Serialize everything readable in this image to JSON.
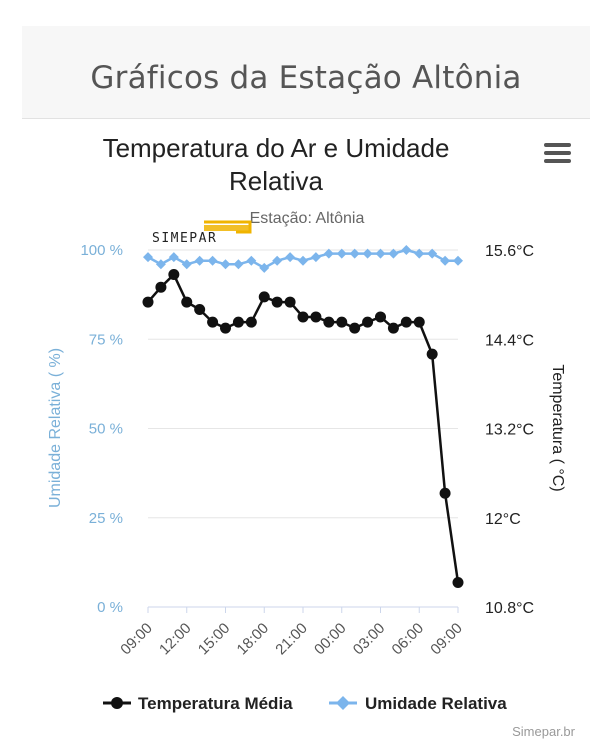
{
  "page": {
    "heading": "Gráficos da Estação Altônia",
    "credit": "Simepar.br"
  },
  "menu": {
    "icon": "hamburger-menu-icon"
  },
  "logo": {
    "text": "SIMEPAR"
  },
  "colors": {
    "temperature": "#111111",
    "humidity": "#7cb5ec",
    "humidity_axis": "#7ab0d8",
    "logo_accent": "#f0b400"
  },
  "chart_data": {
    "type": "line",
    "title": "Temperatura do Ar e Umidade Relativa",
    "title_lines": [
      "Temperatura do Ar e Umidade",
      "Relativa"
    ],
    "subtitle": "Estação: Altônia",
    "x_tick_labels": [
      "09:00",
      "12:00",
      "15:00",
      "18:00",
      "21:00",
      "00:00",
      "03:00",
      "06:00",
      "09:00"
    ],
    "x_range": [
      0,
      24
    ],
    "y_left": {
      "label": "Umidade Relativa ( %)",
      "range": [
        0,
        100
      ],
      "ticks": [
        0,
        25,
        50,
        75,
        100
      ],
      "tick_labels": [
        "0 %",
        "25 %",
        "50 %",
        "75 %",
        "100 %"
      ]
    },
    "y_right": {
      "label": "Temperatura ( °C)",
      "range": [
        10.8,
        15.6
      ],
      "ticks": [
        10.8,
        12,
        13.2,
        14.4,
        15.6
      ],
      "tick_labels": [
        "10.8°C",
        "12°C",
        "13.2°C",
        "14.4°C",
        "15.6°C"
      ]
    },
    "series": [
      {
        "name": "Temperatura Média",
        "axis": "right",
        "x": [
          0,
          1,
          2,
          3,
          4,
          5,
          6,
          7,
          8,
          9,
          10,
          11,
          12,
          13,
          14,
          15,
          16,
          17,
          18,
          19,
          20,
          21,
          22,
          23,
          24
        ],
        "values": [
          14.9,
          15.1,
          15.27,
          14.9,
          14.8,
          14.63,
          14.55,
          14.63,
          14.63,
          14.97,
          14.9,
          14.9,
          14.7,
          14.7,
          14.63,
          14.63,
          14.55,
          14.63,
          14.7,
          14.55,
          14.63,
          14.63,
          14.2,
          12.33,
          11.13
        ]
      },
      {
        "name": "Umidade Relativa",
        "axis": "left",
        "x": [
          0,
          1,
          2,
          3,
          4,
          5,
          6,
          7,
          8,
          9,
          10,
          11,
          12,
          13,
          14,
          15,
          16,
          17,
          18,
          19,
          20,
          21,
          22,
          23,
          24
        ],
        "values": [
          98,
          96,
          98,
          96,
          97,
          97,
          96,
          96,
          97,
          95,
          97,
          98,
          97,
          98,
          99,
          99,
          99,
          99,
          99,
          99,
          100,
          99,
          99,
          97,
          97
        ]
      }
    ],
    "legend": [
      "Temperatura Média",
      "Umidade Relativa"
    ],
    "legend_position": "bottom-center",
    "grid": true
  }
}
